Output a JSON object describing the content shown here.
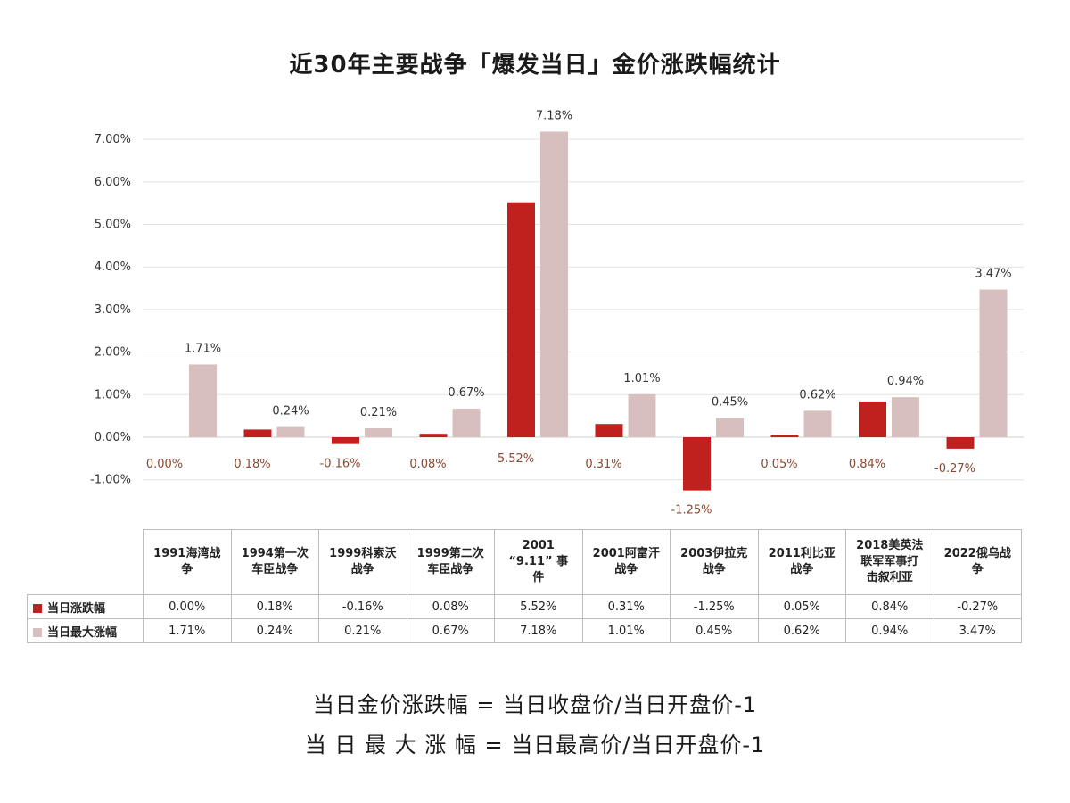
{
  "chart_data": {
    "type": "bar",
    "title": "近30年主要战争「爆发当日」金价涨跌幅统计",
    "xlabel": "",
    "ylabel": "",
    "ylim": [
      -0.01,
      0.0718
    ],
    "yticks": [
      "7.00%",
      "6.00%",
      "5.00%",
      "4.00%",
      "3.00%",
      "2.00%",
      "1.00%",
      "0.00%",
      "-1.00%"
    ],
    "ytick_values": [
      0.07,
      0.06,
      0.05,
      0.04,
      0.03,
      0.02,
      0.01,
      0.0,
      -0.01
    ],
    "grid": true,
    "legend": "table-left",
    "categories": [
      "1991海湾战争",
      "1994第一次车臣战争",
      "1999科索沃战争",
      "1999第二次车臣战争",
      "2001“9.11”事件",
      "2001阿富汗战争",
      "2003伊拉克战争",
      "2011利比亚战争",
      "2018美英法联军军事打击叙利亚",
      "2022俄乌战争"
    ],
    "category_lines": [
      [
        "1991海湾战",
        "争"
      ],
      [
        "1994第一次",
        "车臣战争"
      ],
      [
        "1999科索沃",
        "战争"
      ],
      [
        "1999第二次",
        "车臣战争"
      ],
      [
        "2001",
        "“9.11” 事",
        "件"
      ],
      [
        "2001阿富汗",
        "战争"
      ],
      [
        "2003伊拉克",
        "战争"
      ],
      [
        "2011利比亚",
        "战争"
      ],
      [
        "2018美英法",
        "联军军事打",
        "击叙利亚"
      ],
      [
        "2022俄乌战",
        "争"
      ]
    ],
    "series": [
      {
        "name": "当日涨跌幅",
        "color": "#c0201e",
        "values": [
          0.0,
          0.0018,
          -0.0016,
          0.0008,
          0.0552,
          0.0031,
          -0.0125,
          0.0005,
          0.0084,
          -0.0027
        ],
        "labels": [
          "0.00%",
          "0.18%",
          "-0.16%",
          "0.08%",
          "5.52%",
          "0.31%",
          "-1.25%",
          "0.05%",
          "0.84%",
          "-0.27%"
        ]
      },
      {
        "name": "当日最大涨幅",
        "color": "#d8bfbf",
        "values": [
          0.0171,
          0.0024,
          0.0021,
          0.0067,
          0.0718,
          0.0101,
          0.0045,
          0.0062,
          0.0094,
          0.0347
        ],
        "labels": [
          "1.71%",
          "0.24%",
          "0.21%",
          "0.67%",
          "7.18%",
          "1.01%",
          "0.45%",
          "0.62%",
          "0.94%",
          "3.47%"
        ]
      }
    ]
  },
  "formulas": [
    "当日金价涨跌幅 = 当日收盘价/当日开盘价-1",
    "当 日 最 大 涨 幅 = 当日最高价/当日开盘价-1"
  ]
}
